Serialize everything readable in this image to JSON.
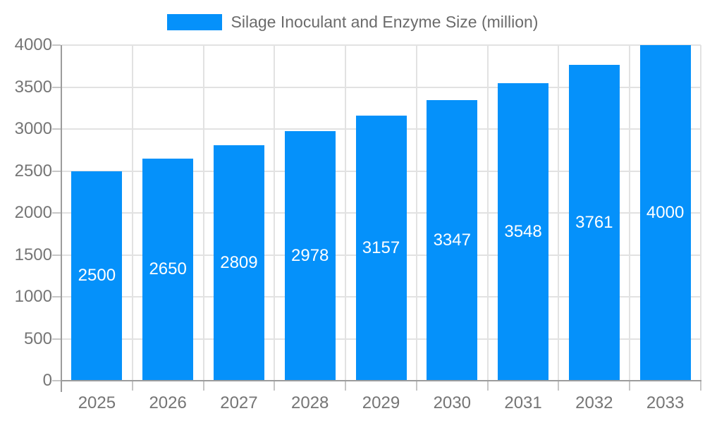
{
  "legend": {
    "position": "top-center"
  },
  "chart_data": {
    "type": "bar",
    "title": "Silage Inoculant and Enzyme Size (million)",
    "legend": [
      "Silage Inoculant and Enzyme Size (million)"
    ],
    "categories": [
      "2025",
      "2026",
      "2027",
      "2028",
      "2029",
      "2030",
      "2031",
      "2032",
      "2033"
    ],
    "values": [
      2500,
      2650,
      2809,
      2978,
      3157,
      3347,
      3548,
      3761,
      4000
    ],
    "xlabel": "",
    "ylabel": "",
    "ylim": [
      0,
      4000
    ],
    "ytick_step": 500,
    "yticks": [
      0,
      500,
      1000,
      1500,
      2000,
      2500,
      3000,
      3500,
      4000
    ],
    "grid": true,
    "bar_labels_visible": true,
    "colors": {
      "bar": "#0591fa",
      "bar_label": "#ffffff",
      "grid": "#e2e2e2",
      "axis_line": "#9c9c9c",
      "tick": "#c6c6c6",
      "axis_text": "#757575",
      "title_text": "#6b6b6b",
      "background": "#ffffff"
    }
  }
}
